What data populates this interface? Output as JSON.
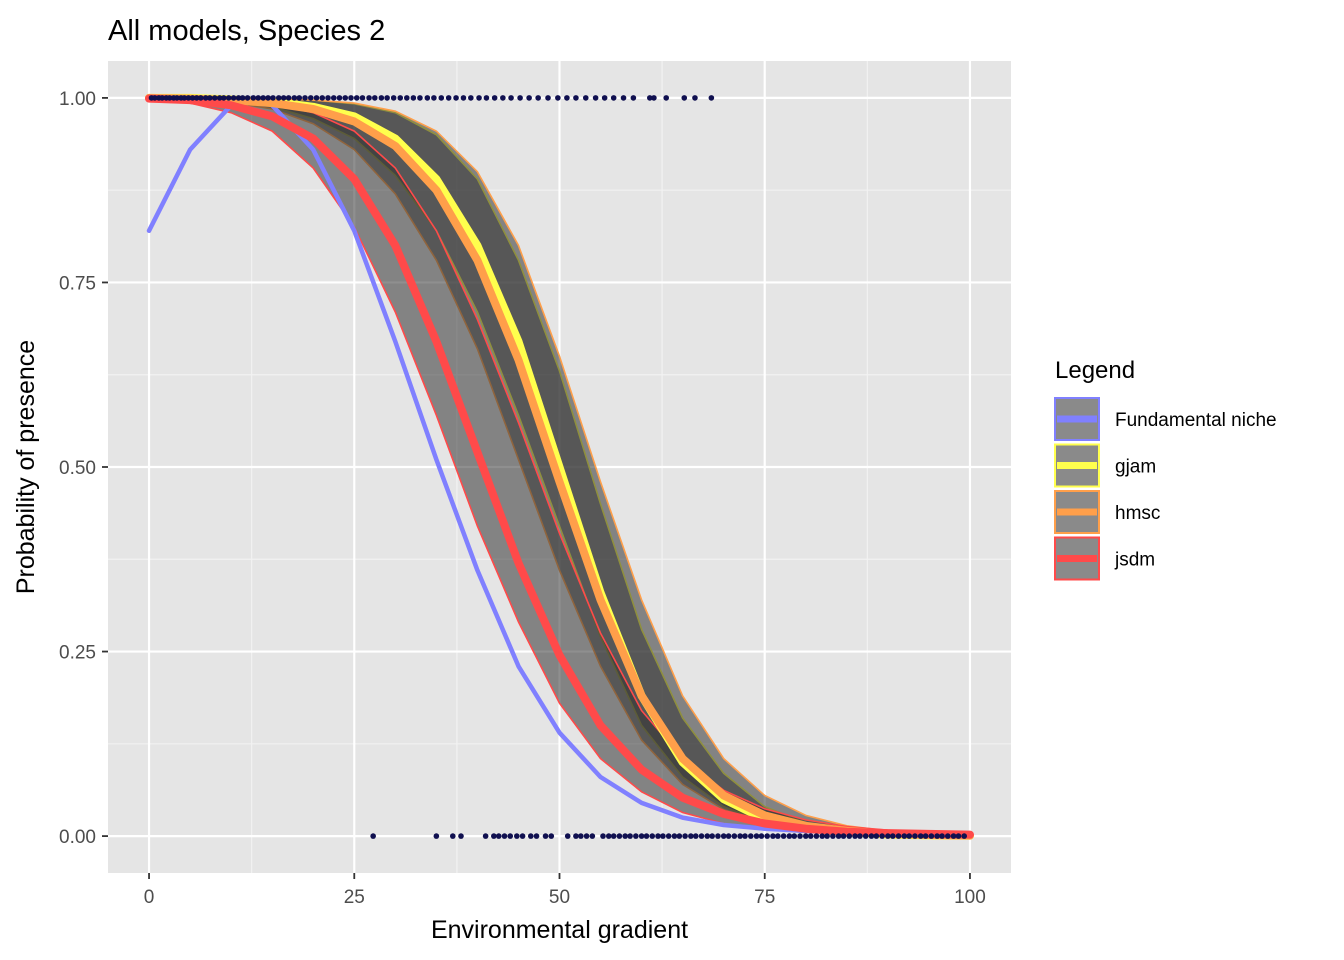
{
  "chart_data": {
    "type": "line",
    "title": "All models, Species 2",
    "xlabel": "Environmental gradient",
    "ylabel": "Probability of presence",
    "xlim": [
      -5,
      105
    ],
    "ylim": [
      -0.05,
      1.05
    ],
    "x_ticks": [
      0,
      25,
      50,
      75,
      100
    ],
    "x_tick_labels": [
      "0",
      "25",
      "50",
      "75",
      "100"
    ],
    "y_ticks": [
      0,
      0.25,
      0.5,
      0.75,
      1
    ],
    "y_tick_labels": [
      "0.00",
      "0.25",
      "0.50",
      "0.75",
      "1.00"
    ],
    "grid": true,
    "legend": {
      "title": "Legend",
      "position": "right",
      "entries": [
        {
          "label": "Fundamental niche",
          "color": "#8080ff"
        },
        {
          "label": "gjam",
          "color": "#ffff4d"
        },
        {
          "label": "hmsc",
          "color": "#ff9f4a"
        },
        {
          "label": "jsdm",
          "color": "#ff4a4a"
        }
      ]
    },
    "series": [
      {
        "name": "Fundamental niche",
        "color": "#8080ff",
        "kind": "line",
        "x": [
          0,
          5,
          10,
          12.5,
          15,
          20,
          25,
          30,
          35,
          40,
          45,
          50,
          55,
          60,
          65,
          70,
          75,
          80,
          85,
          90,
          95,
          100
        ],
        "y": [
          0.82,
          0.93,
          0.99,
          1.0,
          0.99,
          0.93,
          0.82,
          0.67,
          0.51,
          0.36,
          0.23,
          0.14,
          0.08,
          0.045,
          0.025,
          0.015,
          0.01,
          0.007,
          0.005,
          0.003,
          0.002,
          0.001
        ]
      },
      {
        "name": "gjam",
        "color": "#ffff4d",
        "kind": "ribbon",
        "x": [
          0,
          5,
          10,
          15,
          20,
          25,
          30,
          35,
          40,
          45,
          50,
          55,
          60,
          65,
          70,
          75,
          80,
          85,
          90,
          95,
          100
        ],
        "y": [
          1.0,
          1.0,
          0.998,
          0.995,
          0.988,
          0.975,
          0.945,
          0.89,
          0.8,
          0.67,
          0.5,
          0.33,
          0.19,
          0.1,
          0.05,
          0.023,
          0.011,
          0.005,
          0.002,
          0.001,
          0.0005
        ],
        "lower": [
          1.0,
          0.999,
          0.995,
          0.988,
          0.972,
          0.945,
          0.895,
          0.82,
          0.71,
          0.57,
          0.42,
          0.27,
          0.15,
          0.08,
          0.04,
          0.018,
          0.008,
          0.003,
          0.001,
          0.0005,
          0.0002
        ],
        "upper": [
          1.0,
          1.0,
          1.0,
          0.999,
          0.997,
          0.992,
          0.98,
          0.95,
          0.89,
          0.78,
          0.63,
          0.45,
          0.28,
          0.16,
          0.085,
          0.04,
          0.018,
          0.008,
          0.003,
          0.0015,
          0.001
        ]
      },
      {
        "name": "hmsc",
        "color": "#ff9f4a",
        "kind": "ribbon",
        "x": [
          0,
          5,
          10,
          15,
          20,
          25,
          30,
          35,
          40,
          45,
          50,
          55,
          60,
          65,
          70,
          75,
          80,
          85,
          90,
          95,
          100
        ],
        "y": [
          1.0,
          0.999,
          0.997,
          0.993,
          0.985,
          0.968,
          0.935,
          0.875,
          0.78,
          0.645,
          0.48,
          0.32,
          0.19,
          0.105,
          0.055,
          0.028,
          0.014,
          0.007,
          0.003,
          0.0015,
          0.0007
        ],
        "lower": [
          1.0,
          0.999,
          0.994,
          0.985,
          0.965,
          0.93,
          0.87,
          0.78,
          0.66,
          0.51,
          0.36,
          0.23,
          0.13,
          0.07,
          0.036,
          0.018,
          0.008,
          0.004,
          0.002,
          0.001,
          0.0004
        ],
        "upper": [
          1.0,
          1.0,
          1.0,
          0.999,
          0.997,
          0.993,
          0.982,
          0.955,
          0.9,
          0.8,
          0.65,
          0.48,
          0.32,
          0.19,
          0.105,
          0.055,
          0.028,
          0.014,
          0.007,
          0.003,
          0.0015
        ]
      },
      {
        "name": "jsdm",
        "color": "#ff4a4a",
        "kind": "ribbon",
        "x": [
          0,
          5,
          10,
          15,
          20,
          25,
          30,
          35,
          40,
          45,
          50,
          55,
          60,
          65,
          70,
          75,
          80,
          85,
          90,
          95,
          100
        ],
        "y": [
          0.999,
          0.997,
          0.99,
          0.975,
          0.945,
          0.89,
          0.8,
          0.67,
          0.52,
          0.37,
          0.245,
          0.15,
          0.09,
          0.052,
          0.03,
          0.017,
          0.01,
          0.006,
          0.004,
          0.003,
          0.002
        ],
        "lower": [
          0.998,
          0.993,
          0.98,
          0.955,
          0.905,
          0.825,
          0.71,
          0.57,
          0.42,
          0.29,
          0.18,
          0.105,
          0.06,
          0.032,
          0.017,
          0.009,
          0.005,
          0.003,
          0.002,
          0.001,
          0.0005
        ],
        "upper": [
          1.0,
          0.999,
          0.997,
          0.992,
          0.98,
          0.955,
          0.905,
          0.82,
          0.7,
          0.56,
          0.41,
          0.275,
          0.17,
          0.105,
          0.062,
          0.037,
          0.022,
          0.013,
          0.008,
          0.005,
          0.003
        ]
      }
    ],
    "observations": {
      "color": "#101050",
      "presence_y": 1,
      "absence_y": 0,
      "presence_x": [
        0.3,
        0.7,
        1.2,
        1.6,
        2.1,
        2.5,
        3.0,
        3.4,
        3.9,
        4.3,
        4.8,
        5.3,
        5.8,
        6.3,
        6.9,
        7.4,
        8.0,
        8.6,
        9.1,
        9.7,
        10.3,
        10.9,
        11.4,
        12.0,
        12.7,
        13.3,
        13.9,
        14.5,
        15.1,
        15.8,
        16.4,
        17.0,
        17.7,
        18.3,
        19.0,
        19.7,
        20.4,
        21.1,
        21.8,
        22.5,
        23.2,
        23.9,
        24.6,
        25.3,
        26.0,
        26.8,
        27.5,
        28.3,
        29.0,
        29.8,
        30.6,
        31.4,
        32.2,
        33.0,
        33.9,
        34.7,
        35.6,
        36.5,
        37.4,
        38.3,
        39.2,
        40.2,
        41.1,
        42.1,
        43.1,
        44.1,
        45.2,
        46.3,
        47.4,
        48.6,
        49.8,
        50.9,
        52.0,
        53.2,
        54.4,
        55.5,
        56.6,
        57.8,
        59.0,
        61.0,
        61.5,
        63.0,
        65.2,
        66.5,
        68.5
      ],
      "absence_x": [
        27.3,
        35.0,
        37.0,
        38.0,
        41.0,
        42.0,
        42.6,
        43.3,
        44.0,
        44.8,
        45.5,
        46.5,
        47.2,
        48.3,
        49.0,
        51.0,
        52.0,
        52.6,
        53.3,
        54.0,
        55.3,
        56.0,
        56.6,
        57.3,
        58.0,
        58.6,
        59.3,
        60.0,
        60.6,
        61.3,
        62.0,
        62.6,
        63.3,
        64.0,
        64.6,
        65.3,
        66.0,
        66.6,
        67.3,
        68.0,
        68.6,
        69.3,
        70.0,
        70.6,
        71.3,
        72.0,
        72.6,
        73.3,
        74.0,
        74.6,
        75.3,
        76.0,
        76.6,
        77.3,
        78.0,
        78.6,
        79.3,
        80.0,
        80.6,
        81.3,
        82.0,
        82.6,
        83.3,
        84.0,
        84.6,
        85.3,
        86.0,
        86.6,
        87.3,
        88.0,
        88.6,
        89.3,
        90.0,
        90.6,
        91.3,
        92.0,
        92.6,
        93.3,
        94.0,
        94.6,
        95.3,
        96.0,
        96.6,
        97.3,
        98.0,
        98.6,
        99.3
      ]
    }
  }
}
